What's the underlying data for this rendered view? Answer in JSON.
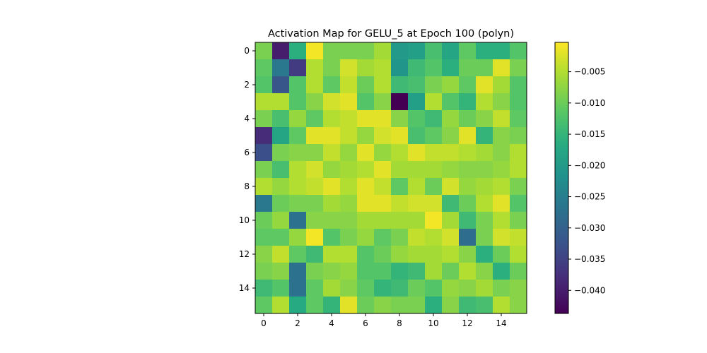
{
  "chart_data": {
    "type": "heatmap",
    "title": "Activation Map for GELU_5 at Epoch 100 (polyn)",
    "xlabel": "",
    "ylabel": "",
    "colormap": "viridis",
    "vmin": -0.0437,
    "vmax": -0.0003,
    "x_ticks": [
      0,
      2,
      4,
      6,
      8,
      10,
      12,
      14
    ],
    "y_ticks": [
      0,
      2,
      4,
      6,
      8,
      10,
      12,
      14
    ],
    "colorbar": {
      "ticks": [
        -0.04,
        -0.035,
        -0.03,
        -0.025,
        -0.02,
        -0.015,
        -0.01,
        -0.005
      ],
      "tick_labels": [
        "−0.040",
        "−0.035",
        "−0.030",
        "−0.025",
        "−0.020",
        "−0.015",
        "−0.010",
        "−0.005"
      ]
    },
    "values": [
      [
        -0.009,
        -0.04,
        -0.016,
        -0.001,
        -0.009,
        -0.009,
        -0.009,
        -0.006,
        -0.02,
        -0.019,
        -0.013,
        -0.018,
        -0.011,
        -0.016,
        -0.016,
        -0.012
      ],
      [
        -0.011,
        -0.026,
        -0.036,
        -0.005,
        -0.009,
        -0.003,
        -0.006,
        -0.005,
        -0.021,
        -0.014,
        -0.012,
        -0.016,
        -0.01,
        -0.01,
        -0.002,
        -0.009
      ],
      [
        -0.012,
        -0.032,
        -0.012,
        -0.005,
        -0.011,
        -0.004,
        -0.01,
        -0.005,
        -0.014,
        -0.013,
        -0.009,
        -0.007,
        -0.011,
        -0.002,
        -0.006,
        -0.012
      ],
      [
        -0.005,
        -0.005,
        -0.012,
        -0.008,
        -0.003,
        -0.002,
        -0.012,
        -0.008,
        -0.0437,
        -0.019,
        -0.005,
        -0.012,
        -0.015,
        -0.005,
        -0.008,
        -0.012
      ],
      [
        -0.009,
        -0.013,
        -0.007,
        -0.011,
        -0.005,
        -0.004,
        -0.002,
        -0.002,
        -0.008,
        -0.012,
        -0.014,
        -0.007,
        -0.01,
        -0.008,
        -0.004,
        -0.011
      ],
      [
        -0.038,
        -0.018,
        -0.011,
        -0.002,
        -0.002,
        -0.004,
        -0.007,
        -0.003,
        -0.002,
        -0.013,
        -0.011,
        -0.008,
        -0.002,
        -0.015,
        -0.008,
        -0.009
      ],
      [
        -0.033,
        -0.009,
        -0.008,
        -0.008,
        -0.004,
        -0.007,
        -0.002,
        -0.007,
        -0.005,
        -0.002,
        -0.004,
        -0.004,
        -0.005,
        -0.006,
        -0.008,
        -0.005
      ],
      [
        -0.009,
        -0.013,
        -0.005,
        -0.003,
        -0.007,
        -0.006,
        -0.005,
        -0.002,
        -0.006,
        -0.006,
        -0.006,
        -0.007,
        -0.008,
        -0.008,
        -0.007,
        -0.005
      ],
      [
        -0.005,
        -0.007,
        -0.005,
        -0.004,
        -0.002,
        -0.005,
        -0.002,
        -0.004,
        -0.011,
        -0.005,
        -0.01,
        -0.003,
        -0.007,
        -0.006,
        -0.005,
        -0.009
      ],
      [
        -0.026,
        -0.01,
        -0.009,
        -0.009,
        -0.006,
        -0.007,
        -0.002,
        -0.002,
        -0.004,
        -0.003,
        -0.003,
        -0.014,
        -0.01,
        -0.005,
        -0.002,
        -0.012
      ],
      [
        -0.01,
        -0.007,
        -0.027,
        -0.008,
        -0.008,
        -0.008,
        -0.006,
        -0.006,
        -0.006,
        -0.006,
        -0.001,
        -0.006,
        -0.014,
        -0.009,
        -0.005,
        -0.009
      ],
      [
        -0.011,
        -0.011,
        -0.007,
        -0.001,
        -0.012,
        -0.009,
        -0.007,
        -0.011,
        -0.009,
        -0.004,
        -0.005,
        -0.003,
        -0.028,
        -0.009,
        -0.003,
        -0.004
      ],
      [
        -0.008,
        -0.004,
        -0.011,
        -0.014,
        -0.005,
        -0.005,
        -0.012,
        -0.01,
        -0.007,
        -0.006,
        -0.006,
        -0.005,
        -0.008,
        -0.016,
        -0.01,
        -0.005
      ],
      [
        -0.009,
        -0.008,
        -0.027,
        -0.009,
        -0.008,
        -0.007,
        -0.012,
        -0.012,
        -0.015,
        -0.014,
        -0.006,
        -0.01,
        -0.005,
        -0.008,
        -0.016,
        -0.01
      ],
      [
        -0.014,
        -0.012,
        -0.027,
        -0.011,
        -0.006,
        -0.008,
        -0.011,
        -0.015,
        -0.014,
        -0.01,
        -0.012,
        -0.007,
        -0.008,
        -0.006,
        -0.009,
        -0.008
      ],
      [
        -0.011,
        -0.005,
        -0.017,
        -0.011,
        -0.015,
        -0.002,
        -0.01,
        -0.008,
        -0.009,
        -0.009,
        -0.016,
        -0.008,
        -0.014,
        -0.013,
        -0.005,
        -0.008
      ]
    ]
  }
}
